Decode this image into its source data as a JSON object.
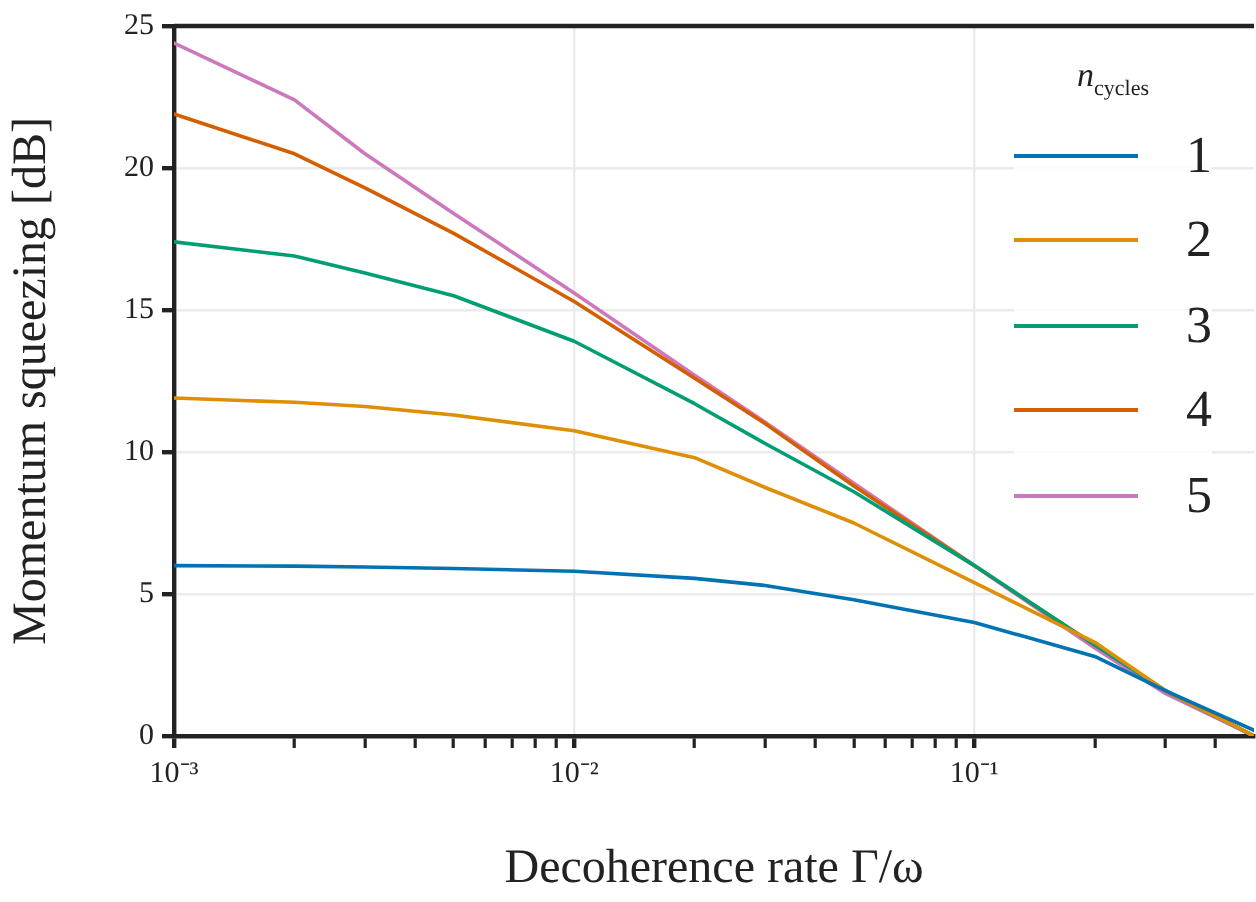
{
  "chart_data": {
    "type": "line",
    "xlabel": "Decoherence rate Γ/ω",
    "ylabel": "Momentum squeezing [dB]",
    "legend_title": "n$_{cycles}$",
    "legend": "top right",
    "grid": true,
    "log": "x",
    "x": [
      0.001,
      0.002,
      0.003,
      0.005,
      0.01,
      0.02,
      0.03,
      0.05,
      0.1,
      0.2,
      0.3,
      0.5
    ],
    "xlim": [
      0.001,
      0.5
    ],
    "xticks": [
      {
        "value": 0.001,
        "label": "10⁻³"
      },
      {
        "value": 0.002,
        "label": null
      },
      {
        "value": 0.003,
        "label": null
      },
      {
        "value": 0.004,
        "label": null
      },
      {
        "value": 0.005,
        "label": null
      },
      {
        "value": 0.006,
        "label": null
      },
      {
        "value": 0.007,
        "label": null
      },
      {
        "value": 0.008,
        "label": null
      },
      {
        "value": 0.009,
        "label": null
      },
      {
        "value": 0.01,
        "label": "10⁻²"
      },
      {
        "value": 0.02,
        "label": null
      },
      {
        "value": 0.03,
        "label": null
      },
      {
        "value": 0.04,
        "label": null
      },
      {
        "value": 0.05,
        "label": null
      },
      {
        "value": 0.06,
        "label": null
      },
      {
        "value": 0.07,
        "label": null
      },
      {
        "value": 0.08,
        "label": null
      },
      {
        "value": 0.09,
        "label": null
      },
      {
        "value": 0.1,
        "label": "10⁻¹"
      },
      {
        "value": 0.2,
        "label": null
      },
      {
        "value": 0.3,
        "label": null
      },
      {
        "value": 0.4,
        "label": null
      }
    ],
    "ylim": [
      0,
      25
    ],
    "yticks": [
      0,
      5,
      10,
      15,
      20,
      25
    ],
    "series": [
      {
        "name": "1",
        "color": "#0173b2",
        "values": [
          6.0,
          5.98,
          5.95,
          5.9,
          5.8,
          5.55,
          5.3,
          4.8,
          4.0,
          2.8,
          1.6,
          0.2
        ]
      },
      {
        "name": "2",
        "color": "#de8f05",
        "values": [
          11.9,
          11.75,
          11.6,
          11.3,
          10.75,
          9.8,
          8.75,
          7.5,
          5.4,
          3.3,
          1.6,
          0.0
        ]
      },
      {
        "name": "3",
        "color": "#029e73",
        "values": [
          17.4,
          16.9,
          16.3,
          15.5,
          13.9,
          11.7,
          10.3,
          8.6,
          6.0,
          3.2,
          1.6,
          0.0
        ]
      },
      {
        "name": "4",
        "color": "#d55e00",
        "values": [
          21.9,
          20.5,
          19.3,
          17.7,
          15.3,
          12.6,
          11.0,
          8.8,
          6.0,
          3.2,
          1.6,
          0.0
        ]
      },
      {
        "name": "5",
        "color": "#cc78bc",
        "values": [
          24.4,
          22.4,
          20.5,
          18.4,
          15.6,
          12.7,
          11.05,
          8.9,
          6.0,
          3.1,
          1.5,
          0.0
        ]
      }
    ]
  }
}
